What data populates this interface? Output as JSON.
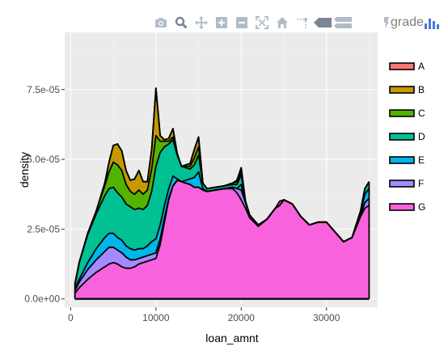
{
  "modebar": {
    "buttons": [
      {
        "name": "camera-icon",
        "title": "Download plot as png"
      },
      {
        "name": "zoom-icon",
        "title": "Zoom"
      },
      {
        "name": "pan-icon",
        "title": "Pan"
      },
      {
        "name": "zoom-in-icon",
        "title": "Zoom in"
      },
      {
        "name": "zoom-out-icon",
        "title": "Zoom out"
      },
      {
        "name": "autoscale-icon",
        "title": "Autoscale"
      },
      {
        "name": "home-icon",
        "title": "Reset axes"
      },
      {
        "name": "spike-lines-icon",
        "title": "Toggle Spike Lines"
      },
      {
        "name": "hover-closest-icon",
        "title": "Show closest data on hover"
      },
      {
        "name": "hover-compare-icon",
        "title": "Compare data on hover"
      }
    ],
    "logo_text": "grade",
    "icon_color": "#b2bcc9",
    "active_color": "#7a8694"
  },
  "chart_data": {
    "type": "area",
    "title": "",
    "xlabel": "loan_amnt",
    "ylabel": "density",
    "xlim": [
      -700,
      36000
    ],
    "ylim": [
      -3e-06,
      9.55e-05
    ],
    "x_ticks": [
      0,
      10000,
      20000,
      30000
    ],
    "x_tick_labels": [
      "0",
      "10000",
      "20000",
      "30000"
    ],
    "y_ticks": [
      0,
      2.5e-05,
      5e-05,
      7.5e-05
    ],
    "y_tick_labels": [
      "0.0e+00",
      "2.5e-05",
      "5.0e-05",
      "7.5e-05"
    ],
    "grid": true,
    "legend_position": "right",
    "stacked": true,
    "x": [
      500,
      1000,
      2000,
      3000,
      4000,
      4500,
      5000,
      5500,
      6000,
      6500,
      7000,
      7500,
      8000,
      8500,
      9000,
      9500,
      10000,
      10500,
      11000,
      11500,
      12000,
      12500,
      13000,
      14000,
      14500,
      15000,
      15500,
      16000,
      17000,
      18000,
      19000,
      19500,
      20000,
      20500,
      21000,
      22000,
      23000,
      24000,
      24500,
      25000,
      26000,
      27000,
      28000,
      29000,
      30000,
      31000,
      32000,
      33000,
      34000,
      34500,
      35000
    ],
    "series": [
      {
        "name": "G",
        "color": "#f862dc",
        "values": [
          2e-06,
          4e-06,
          7e-06,
          9.5e-06,
          1.15e-05,
          1.25e-05,
          1.3e-05,
          1.25e-05,
          1.15e-05,
          1.1e-05,
          1.1e-05,
          1.15e-05,
          1.25e-05,
          1.3e-05,
          1.35e-05,
          1.4e-05,
          1.45e-05,
          1.95e-05,
          2.75e-05,
          3.55e-05,
          4.05e-05,
          4.25e-05,
          4.2e-05,
          4.1e-05,
          4e-05,
          4e-05,
          3.9e-05,
          3.85e-05,
          3.9e-05,
          3.95e-05,
          3.95e-05,
          3.8e-05,
          3.55e-05,
          3.25e-05,
          2.9e-05,
          2.6e-05,
          2.85e-05,
          3.25e-05,
          3.35e-05,
          3.55e-05,
          3.4e-05,
          2.95e-05,
          2.65e-05,
          2.75e-05,
          2.75e-05,
          2.4e-05,
          2.05e-05,
          2.2e-05,
          2.95e-05,
          3.25e-05,
          3.35e-05
        ]
      },
      {
        "name": "F",
        "color": "#a58aff",
        "values": [
          1e-06,
          2e-06,
          3.5e-06,
          4.5e-06,
          5.5e-06,
          6e-06,
          5.5e-06,
          5e-06,
          5e-06,
          4e-06,
          3e-06,
          2.5e-06,
          2e-06,
          2e-06,
          2e-06,
          2e-06,
          2e-06,
          2e-06,
          1.5e-06,
          5e-07,
          0,
          0,
          0,
          0,
          0,
          0,
          0,
          0,
          0,
          0,
          5e-07,
          1.5e-06,
          3.5e-06,
          2e-06,
          1e-06,
          5e-07,
          0,
          0,
          0,
          0,
          0,
          0,
          0,
          0,
          0,
          0,
          0,
          0,
          5e-07,
          2e-06,
          2.5e-06
        ]
      },
      {
        "name": "E",
        "color": "#00b6eb",
        "values": [
          8e-07,
          1e-06,
          2.5e-06,
          4e-06,
          5e-06,
          5e-06,
          5e-06,
          4.5e-06,
          4.5e-06,
          4e-06,
          4e-06,
          3.5e-06,
          3.5e-06,
          3e-06,
          3.5e-06,
          4.5e-06,
          5e-06,
          5e-06,
          4.5e-06,
          3.5e-06,
          3.5e-06,
          5e-07,
          0,
          2e-06,
          3.5e-06,
          5.5e-06,
          5e-07,
          0,
          0,
          0,
          0,
          0,
          2e-06,
          0,
          0,
          0,
          0,
          0,
          0,
          0,
          0,
          0,
          0,
          0,
          0,
          0,
          0,
          0,
          1e-06,
          3e-06,
          3.5e-06
        ]
      },
      {
        "name": "D",
        "color": "#00c094",
        "values": [
          1.5e-06,
          6e-06,
          1e-05,
          1.25e-05,
          1.5e-05,
          1.6e-05,
          1.65e-05,
          1.6e-05,
          1.55e-05,
          1.5e-05,
          1.5e-05,
          1.45e-05,
          1.45e-05,
          1.4e-05,
          1.45e-05,
          1.8e-05,
          2.6e-05,
          2.6e-05,
          2.1e-05,
          1.6e-05,
          1.3e-05,
          8.5e-06,
          5.5e-06,
          3.5e-06,
          4.5e-06,
          6e-06,
          2e-06,
          1e-06,
          1e-06,
          1e-06,
          1e-06,
          1.5e-06,
          3.5e-06,
          5e-07,
          0,
          0,
          0,
          0,
          0,
          0,
          0,
          0,
          0,
          0,
          0,
          0,
          0,
          0,
          5e-07,
          2e-06,
          2.5e-06
        ]
      },
      {
        "name": "C",
        "color": "#53b400",
        "values": [
          0,
          0,
          5e-07,
          1e-06,
          3.5e-06,
          6e-06,
          9e-06,
          1e-05,
          9.5e-06,
          7e-06,
          5.5e-06,
          5.5e-06,
          6.5e-06,
          5.5e-06,
          5.5e-06,
          8e-06,
          1.1e-05,
          4e-06,
          2e-06,
          1e-06,
          1e-06,
          5e-07,
          0,
          1e-06,
          2.5e-06,
          3e-06,
          0,
          0,
          0,
          0,
          5e-07,
          1e-06,
          1.5e-06,
          0,
          0,
          0,
          0,
          0,
          0,
          0,
          0,
          0,
          0,
          0,
          0,
          0,
          0,
          0,
          0,
          0,
          0
        ]
      },
      {
        "name": "B",
        "color": "#c49a00",
        "values": [
          0,
          0,
          0,
          0,
          1e-06,
          3.5e-06,
          6e-06,
          7.5e-06,
          7e-06,
          5e-06,
          4e-06,
          5.5e-06,
          7e-06,
          4.5e-06,
          3e-06,
          7e-06,
          1.7e-05,
          2e-06,
          5e-07,
          1e-06,
          3e-06,
          0,
          0,
          1e-06,
          3e-06,
          3.5e-06,
          0,
          0,
          0,
          0,
          0,
          5e-07,
          1e-06,
          0,
          0,
          0,
          0,
          0,
          0,
          0,
          0,
          0,
          0,
          0,
          0,
          0,
          0,
          0,
          0,
          0,
          0
        ]
      },
      {
        "name": "A",
        "color": "#f8766d",
        "values": [
          0,
          0,
          0,
          0,
          0,
          0,
          0,
          0,
          0,
          0,
          0,
          0,
          0,
          0,
          0,
          0,
          0,
          0,
          0,
          0,
          0,
          0,
          0,
          0,
          0,
          0,
          0,
          0,
          0,
          0,
          0,
          0,
          0,
          0,
          0,
          0,
          0,
          0,
          1.5e-06,
          0,
          0,
          0,
          0,
          0,
          0,
          0,
          0,
          0,
          0,
          0,
          0
        ]
      }
    ],
    "legend": [
      "A",
      "B",
      "C",
      "D",
      "E",
      "F",
      "G"
    ]
  }
}
